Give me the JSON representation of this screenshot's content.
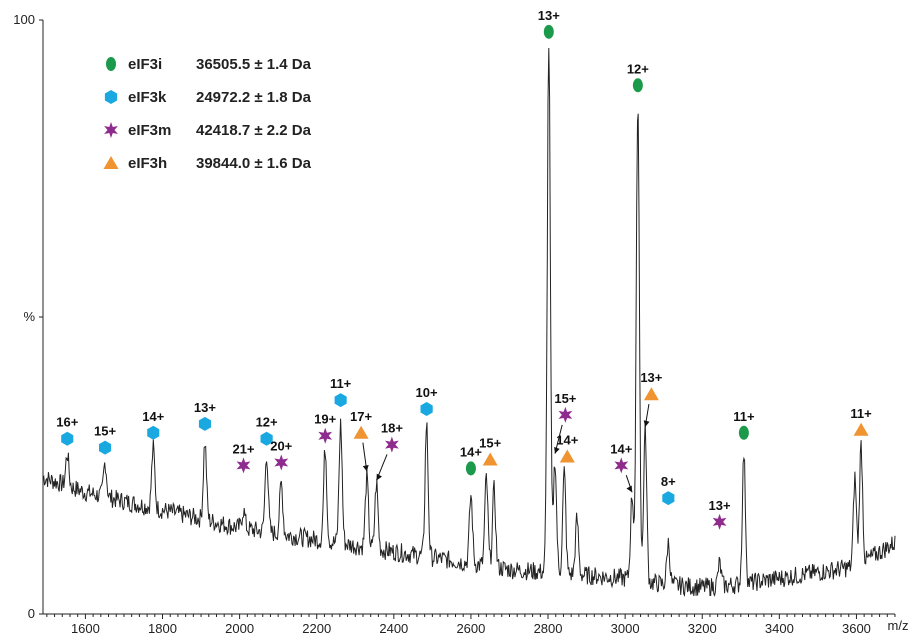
{
  "chart_data": {
    "type": "line",
    "title": "",
    "xlabel": "m/z",
    "ylabel": "%",
    "xlim": [
      1490,
      3700
    ],
    "ylim": [
      0,
      100
    ],
    "x_ticks": [
      1600,
      1800,
      2000,
      2200,
      2400,
      2600,
      2800,
      3000,
      3200,
      3400,
      3600
    ],
    "y_tick_labels": [
      {
        "value": 0,
        "text": "0"
      },
      {
        "value": 50,
        "text": "%"
      },
      {
        "value": 100,
        "text": "100"
      }
    ],
    "colors": {
      "eIF3i": "#1a9a4a",
      "eIF3k": "#1aa8e0",
      "eIF3m": "#8e2c8e",
      "eIF3h": "#ef9431",
      "trace": "#222222"
    },
    "legend": {
      "placement": "top-left",
      "entries": [
        {
          "id": "eIF3i",
          "name": "eIF3i",
          "mass": "36505.5 ± 1.4 Da",
          "marker": "ellipse"
        },
        {
          "id": "eIF3k",
          "name": "eIF3k",
          "mass": "24972.2 ± 1.8 Da",
          "marker": "hexagon"
        },
        {
          "id": "eIF3m",
          "name": "eIF3m",
          "mass": "42418.7 ± 2.2 Da",
          "marker": "star"
        },
        {
          "id": "eIF3h",
          "name": "eIF3h",
          "mass": "39844.0 ± 1.6 Da",
          "marker": "triangle"
        }
      ]
    },
    "baseline": [
      [
        1490,
        23
      ],
      [
        1600,
        20.5
      ],
      [
        1700,
        19
      ],
      [
        1800,
        17.5
      ],
      [
        1900,
        16
      ],
      [
        2000,
        14.5
      ],
      [
        2100,
        13.5
      ],
      [
        2200,
        12.5
      ],
      [
        2300,
        11.5
      ],
      [
        2400,
        10.5
      ],
      [
        2500,
        9.5
      ],
      [
        2600,
        8.5
      ],
      [
        2700,
        7.5
      ],
      [
        2800,
        7
      ],
      [
        2900,
        6.5
      ],
      [
        3000,
        6
      ],
      [
        3100,
        5
      ],
      [
        3200,
        4.5
      ],
      [
        3300,
        5
      ],
      [
        3400,
        6
      ],
      [
        3500,
        7
      ],
      [
        3600,
        8
      ],
      [
        3700,
        12
      ]
    ],
    "peaks": [
      {
        "x": 1553,
        "y": 27
      },
      {
        "x": 1651,
        "y": 25.5
      },
      {
        "x": 1776,
        "y": 28
      },
      {
        "x": 1910,
        "y": 29
      },
      {
        "x": 2010,
        "y": 17.5
      },
      {
        "x": 2070,
        "y": 27
      },
      {
        "x": 2108,
        "y": 22
      },
      {
        "x": 2222,
        "y": 28
      },
      {
        "x": 2262,
        "y": 32
      },
      {
        "x": 2330,
        "y": 23
      },
      {
        "x": 2355,
        "y": 22
      },
      {
        "x": 2485,
        "y": 32
      },
      {
        "x": 2600,
        "y": 20
      },
      {
        "x": 2640,
        "y": 23
      },
      {
        "x": 2660,
        "y": 21
      },
      {
        "x": 2802,
        "y": 96
      },
      {
        "x": 2818,
        "y": 26
      },
      {
        "x": 2842,
        "y": 24
      },
      {
        "x": 2875,
        "y": 16
      },
      {
        "x": 3018,
        "y": 20
      },
      {
        "x": 3033,
        "y": 87
      },
      {
        "x": 3052,
        "y": 31
      },
      {
        "x": 3112,
        "y": 12
      },
      {
        "x": 3245,
        "y": 8.5
      },
      {
        "x": 3308,
        "y": 27
      },
      {
        "x": 3596,
        "y": 23
      },
      {
        "x": 3612,
        "y": 28.5
      }
    ],
    "annotations": [
      {
        "protein": "eIF3k",
        "charge": "16+",
        "x": 1553,
        "y": 28.5
      },
      {
        "protein": "eIF3k",
        "charge": "15+",
        "x": 1651,
        "y": 27
      },
      {
        "protein": "eIF3k",
        "charge": "14+",
        "x": 1776,
        "y": 29.5
      },
      {
        "protein": "eIF3k",
        "charge": "13+",
        "x": 1910,
        "y": 31
      },
      {
        "protein": "eIF3m",
        "charge": "21+",
        "x": 2010,
        "y": 24
      },
      {
        "protein": "eIF3k",
        "charge": "12+",
        "x": 2070,
        "y": 28.5
      },
      {
        "protein": "eIF3m",
        "charge": "20+",
        "x": 2108,
        "y": 24.5
      },
      {
        "protein": "eIF3m",
        "charge": "19+",
        "x": 2222,
        "y": 29
      },
      {
        "protein": "eIF3k",
        "charge": "11+",
        "x": 2262,
        "y": 35
      },
      {
        "protein": "eIF3h",
        "charge": "17+",
        "x": 2315,
        "y": 29.5,
        "arrow_to": [
          2330,
          24
        ]
      },
      {
        "protein": "eIF3m",
        "charge": "18+",
        "x": 2395,
        "y": 27.5,
        "arrow_to": [
          2355,
          22.5
        ]
      },
      {
        "protein": "eIF3k",
        "charge": "10+",
        "x": 2485,
        "y": 33.5
      },
      {
        "protein": "eIF3i",
        "charge": "14+",
        "x": 2600,
        "y": 23.5
      },
      {
        "protein": "eIF3h",
        "charge": "15+",
        "x": 2650,
        "y": 25
      },
      {
        "protein": "eIF3i",
        "charge": "13+",
        "x": 2802,
        "y": 97
      },
      {
        "protein": "eIF3m",
        "charge": "15+",
        "x": 2845,
        "y": 32.5,
        "arrow_to": [
          2818,
          27
        ]
      },
      {
        "protein": "eIF3h",
        "charge": "14+",
        "x": 2850,
        "y": 25.5
      },
      {
        "protein": "eIF3m",
        "charge": "14+",
        "x": 2990,
        "y": 24,
        "arrow_to": [
          3018,
          20.5
        ]
      },
      {
        "protein": "eIF3i",
        "charge": "12+",
        "x": 3033,
        "y": 88
      },
      {
        "protein": "eIF3h",
        "charge": "13+",
        "x": 3068,
        "y": 36,
        "arrow_to": [
          3052,
          31.5
        ]
      },
      {
        "protein": "eIF3k",
        "charge": "8+",
        "x": 3112,
        "y": 18.5
      },
      {
        "protein": "eIF3m",
        "charge": "13+",
        "x": 3245,
        "y": 14.5
      },
      {
        "protein": "eIF3i",
        "charge": "11+",
        "x": 3308,
        "y": 29.5
      },
      {
        "protein": "eIF3h",
        "charge": "11+",
        "x": 3612,
        "y": 30
      }
    ]
  }
}
